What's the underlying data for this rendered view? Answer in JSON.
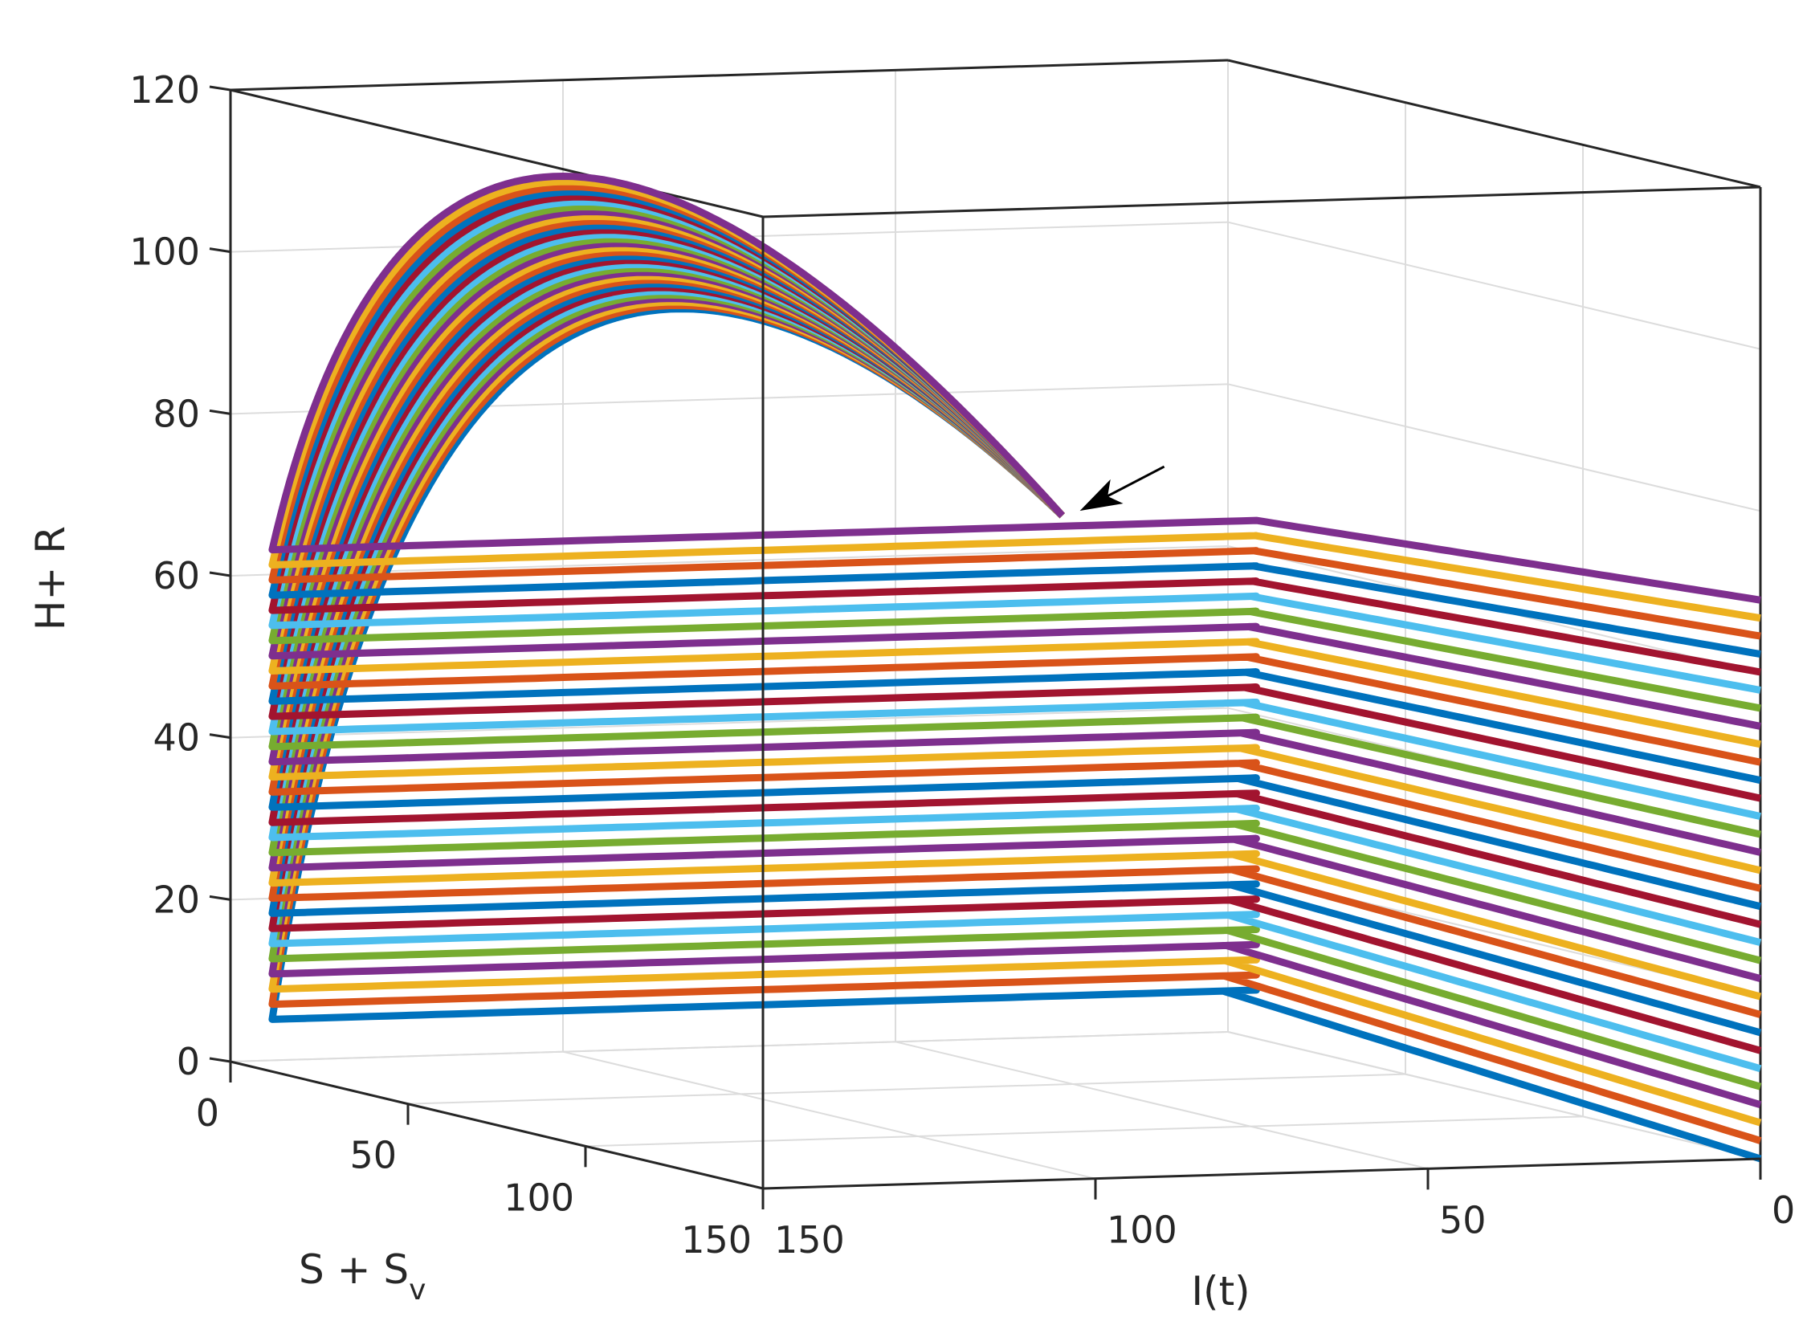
{
  "chart_data": {
    "type": "line",
    "projection": "3d",
    "view": "box view looking from the high-I(t) side: S + S_v axis front-left, I(t) axis front-right",
    "grid": true,
    "legend": "none",
    "axes": {
      "x": {
        "label": "S + S",
        "label_subscript": "v",
        "lim": [
          0,
          150
        ],
        "ticks": [
          0,
          50,
          100,
          150
        ],
        "tick_labels": [
          "0",
          "50",
          "100",
          "150"
        ]
      },
      "y": {
        "label": "I(t)",
        "lim": [
          0,
          150
        ],
        "ticks": [
          150,
          100,
          50,
          0
        ],
        "tick_labels": [
          "150",
          "100",
          "50",
          "0"
        ]
      },
      "z": {
        "label": "H+ R",
        "lim": [
          0,
          120
        ],
        "ticks": [
          0,
          20,
          40,
          60,
          80,
          100,
          120
        ],
        "tick_labels": [
          "0",
          "20",
          "40",
          "60",
          "80",
          "100",
          "120"
        ]
      }
    },
    "series_colors": [
      "#0072BD",
      "#D95319",
      "#EDB120",
      "#7E2F8E",
      "#77AC30",
      "#4DBEEE",
      "#A2142F"
    ],
    "series_count": 32,
    "trajectory_family": {
      "description": "Family of solution curves; each starts at S+Sv about 150, I(t) about 0, with a different initial H+R, and converges to the common equilibrium marked by the arrow",
      "initial_conditions": {
        "S_plus_Sv": 150,
        "I": 0,
        "H_plus_R_range": [
          0,
          69
        ]
      },
      "equilibrium": {
        "S_plus_Sv": 150,
        "I": 105,
        "H_plus_R": 82
      },
      "descent_end": {
        "S_plus_Sv": 8,
        "I": 148,
        "H_plus_R_range": [
          6,
          64
        ]
      },
      "arc_peak": {
        "S_plus_Sv": 55,
        "I": 132,
        "H_plus_R_range": [
          95,
          116
        ]
      }
    },
    "annotations": [
      {
        "type": "arrow",
        "points_to": "equilibrium"
      }
    ]
  }
}
